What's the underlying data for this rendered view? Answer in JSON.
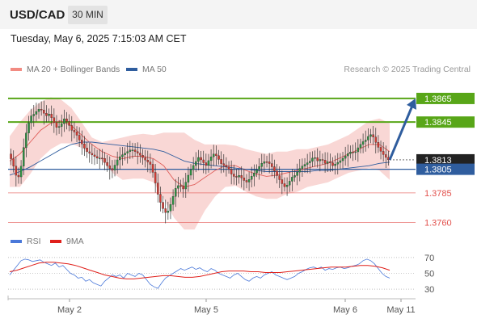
{
  "header": {
    "pair": "USD/CAD",
    "timeframe": "30 MIN"
  },
  "datetime": "Tuesday, May 6, 2025 7:15:03 AM CET",
  "legend": {
    "ma_bb": {
      "label": "MA 20 + Bollinger Bands",
      "color": "#f28b82"
    },
    "ma50": {
      "label": "MA 50",
      "color": "#2f5d9e"
    }
  },
  "credit": "Research © 2025 Trading Central",
  "rsi_legend": {
    "rsi": {
      "label": "RSI",
      "color": "#4a78d9"
    },
    "ma9": {
      "label": "9MA",
      "color": "#e0201b"
    }
  },
  "chart_data": [
    {
      "type": "candlestick",
      "ylim": [
        1.375,
        1.388
      ],
      "x_ticks": [
        "May 2",
        "May 5",
        "May 6",
        "May 11"
      ],
      "horizontal_levels": [
        {
          "value": 1.3865,
          "label": "1.3865",
          "style": "resistance",
          "color": "#58a618"
        },
        {
          "value": 1.3845,
          "label": "1.3845",
          "style": "resistance",
          "color": "#58a618"
        },
        {
          "value": 1.3813,
          "label": "1.3813",
          "style": "last-price",
          "color": "#222222"
        },
        {
          "value": 1.3805,
          "label": "1.3805",
          "style": "pivot",
          "color": "#2f5d9e"
        },
        {
          "value": 1.3785,
          "label": "1.3785",
          "style": "support",
          "color": "#e2514d"
        },
        {
          "value": 1.376,
          "label": "1.3760",
          "style": "support",
          "color": "#e2514d"
        }
      ],
      "path_points": [
        1.3818,
        1.3812,
        1.38,
        1.3798,
        1.3822,
        1.384,
        1.385,
        1.3852,
        1.3856,
        1.3855,
        1.385,
        1.3852,
        1.3846,
        1.384,
        1.3842,
        1.3848,
        1.3844,
        1.3838,
        1.3836,
        1.383,
        1.3825,
        1.382,
        1.3818,
        1.3816,
        1.3814,
        1.3815,
        1.381,
        1.3806,
        1.3804,
        1.3812,
        1.3816,
        1.3818,
        1.382,
        1.3822,
        1.382,
        1.3818,
        1.3815,
        1.3812,
        1.381,
        1.38,
        1.3785,
        1.3775,
        1.3768,
        1.377,
        1.378,
        1.379,
        1.3792,
        1.3788,
        1.3798,
        1.3805,
        1.381,
        1.3815,
        1.3812,
        1.3808,
        1.3814,
        1.3818,
        1.3816,
        1.381,
        1.3808,
        1.3806,
        1.38,
        1.3798,
        1.38,
        1.3796,
        1.3794,
        1.3798,
        1.3802,
        1.3806,
        1.381,
        1.3812,
        1.381,
        1.3806,
        1.38,
        1.3795,
        1.379,
        1.3792,
        1.3798,
        1.38,
        1.3805,
        1.3808,
        1.381,
        1.3812,
        1.3816,
        1.3812,
        1.3814,
        1.381,
        1.3812,
        1.3808,
        1.381,
        1.3812,
        1.3815,
        1.3818,
        1.382,
        1.3819,
        1.3824,
        1.3828,
        1.383,
        1.3835,
        1.3832,
        1.3825,
        1.382,
        1.3816,
        1.3813
      ],
      "ma20": [
        1.3812,
        1.3818,
        1.3828,
        1.3838,
        1.3844,
        1.3846,
        1.3842,
        1.3834,
        1.3826,
        1.382,
        1.3816,
        1.3814,
        1.3816,
        1.3816,
        1.3814,
        1.3808,
        1.3796,
        1.379,
        1.3792,
        1.3798,
        1.3804,
        1.3808,
        1.3808,
        1.3804,
        1.3801,
        1.3799,
        1.38,
        1.3802,
        1.3804,
        1.3806,
        1.3808,
        1.381,
        1.3814,
        1.3818,
        1.3822,
        1.3826,
        1.3826,
        1.382
      ],
      "bb_upper": [
        1.3833,
        1.3845,
        1.3855,
        1.3862,
        1.3866,
        1.3864,
        1.3857,
        1.3845,
        1.3832,
        1.3828,
        1.383,
        1.3832,
        1.3834,
        1.3835,
        1.3834,
        1.3836,
        1.3836,
        1.3836,
        1.383,
        1.3826,
        1.3826,
        1.3826,
        1.3825,
        1.3822,
        1.382,
        1.3818,
        1.382,
        1.382,
        1.3822,
        1.3822,
        1.3824,
        1.3826,
        1.383,
        1.3834,
        1.384,
        1.3846,
        1.3848,
        1.3844
      ],
      "bb_lower": [
        1.379,
        1.379,
        1.3801,
        1.3814,
        1.3822,
        1.3827,
        1.3827,
        1.3823,
        1.3819,
        1.3812,
        1.3802,
        1.3796,
        1.3797,
        1.3797,
        1.3794,
        1.378,
        1.3764,
        1.3754,
        1.3754,
        1.377,
        1.3782,
        1.379,
        1.3791,
        1.3786,
        1.3782,
        1.378,
        1.378,
        1.3784,
        1.3786,
        1.379,
        1.3792,
        1.3794,
        1.3798,
        1.3802,
        1.3804,
        1.3806,
        1.3804,
        1.3796
      ],
      "ma50": [
        1.38,
        1.3803,
        1.3807,
        1.3812,
        1.3817,
        1.3822,
        1.3826,
        1.3828,
        1.3828,
        1.3827,
        1.3826,
        1.3825,
        1.3824,
        1.3823,
        1.3822,
        1.382,
        1.3816,
        1.3812,
        1.381,
        1.3809,
        1.3808,
        1.3807,
        1.3806,
        1.3805,
        1.3804,
        1.3803,
        1.3803,
        1.3803,
        1.3803,
        1.3803,
        1.3804,
        1.3804,
        1.3805,
        1.3806,
        1.3807,
        1.3808,
        1.381,
        1.3811
      ],
      "projection": {
        "from": 1.3813,
        "to": 1.3865
      }
    },
    {
      "type": "line",
      "title": "RSI",
      "ylim": [
        25,
        75
      ],
      "y_ticks": [
        30,
        50,
        70
      ],
      "series": [
        {
          "name": "RSI",
          "values": [
            48,
            54,
            60,
            66,
            68,
            67,
            65,
            66,
            67,
            64,
            62,
            60,
            63,
            58,
            60,
            55,
            50,
            48,
            44,
            45,
            40,
            42,
            38,
            36,
            34,
            40,
            44,
            48,
            46,
            48,
            44,
            50,
            48,
            46,
            50,
            48,
            42,
            36,
            33,
            31,
            38,
            44,
            47,
            50,
            53,
            56,
            54,
            56,
            58,
            55,
            57,
            54,
            52,
            56,
            54,
            50,
            48,
            46,
            44,
            48,
            50,
            46,
            42,
            40,
            44,
            46,
            44,
            48,
            50,
            52,
            48,
            46,
            44,
            42,
            44,
            46,
            50,
            52,
            55,
            57,
            58,
            56,
            58,
            54,
            56,
            55,
            57,
            58,
            56,
            57,
            59,
            60,
            62,
            66,
            68,
            66,
            62,
            56,
            50,
            46,
            44
          ]
        },
        {
          "name": "9MA",
          "values": [
            52,
            54,
            57,
            60,
            63,
            64,
            64,
            63,
            62,
            60,
            57,
            54,
            51,
            48,
            46,
            44,
            43,
            43,
            44,
            45,
            46,
            47,
            47,
            46,
            45,
            45,
            46,
            48,
            50,
            52,
            53,
            53,
            53,
            52,
            52,
            51,
            51,
            51,
            52,
            53,
            54,
            55,
            56,
            57,
            58,
            58,
            58,
            59,
            60,
            60,
            59,
            57,
            54
          ]
        }
      ]
    }
  ]
}
